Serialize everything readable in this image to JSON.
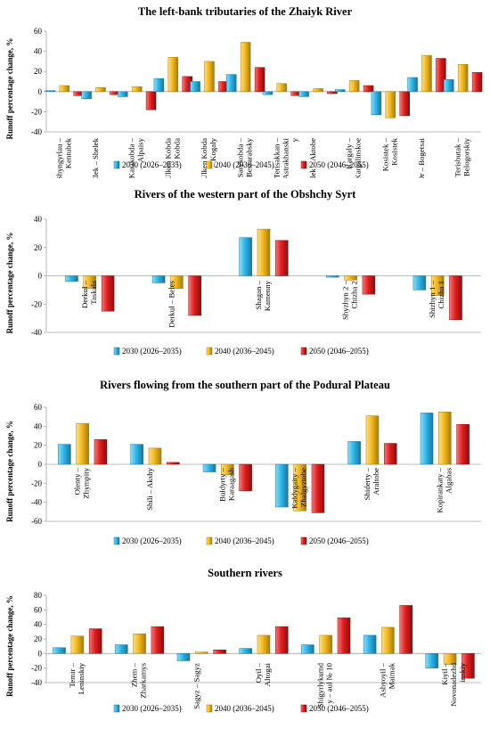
{
  "chart_data": [
    {
      "type": "bar",
      "title": "The left-bank tributaries of the Zhaiyk River",
      "ylabel": "Runoff percentage change, %",
      "ylim": [
        -40,
        60
      ],
      "yticks": [
        -40,
        -20,
        0,
        20,
        40,
        60
      ],
      "categories": [
        "Shyngyrlau –\nKentubek",
        "Elek – Shelek",
        "Karakobda –\nAlpaisy",
        "Ulken Kobda\n– Kobda",
        "Ulken Kobda\n– Kogaly",
        "Sarykobda –\nBessarabsky",
        "Terisakkan –\nAstrakhanski\ny",
        "Elek – Aktobe",
        "Kargaly –\nKargalinskoe",
        "Kosistek –\nKosistek",
        "Or – Bogetsai",
        "Terisbutak –\nBelogorskiy"
      ],
      "series": [
        {
          "name": "2030 (2026–2035)",
          "values": [
            1,
            -7,
            -5,
            13,
            10,
            17,
            -3,
            -5,
            2,
            -23,
            14,
            12
          ]
        },
        {
          "name": "2040 (2036–2045)",
          "values": [
            6,
            4,
            5,
            34,
            30,
            49,
            8,
            3,
            11,
            -26,
            36,
            27
          ]
        },
        {
          "name": "2050 (2046–2055)",
          "values": [
            -4,
            -3,
            -18,
            15,
            10,
            24,
            -4,
            -2,
            6,
            -24,
            33,
            19
          ]
        }
      ]
    },
    {
      "type": "bar",
      "title": "Rivers of the western part of the Obshchy Syrt",
      "ylabel": "Runoff percentage change, %",
      "ylim": [
        -40,
        40
      ],
      "yticks": [
        -40,
        -20,
        0,
        20,
        40
      ],
      "categories": [
        "Derkul –\nTaskala",
        "Derkul – Beles",
        "Shagan –\nKamenny",
        "Shyzhyn 2 –\nChizha 2",
        "Shizhyn 1 –\nChizha 1"
      ],
      "series": [
        {
          "name": "2030 (2026–2035)",
          "values": [
            -4,
            -5,
            27,
            -1,
            -10
          ]
        },
        {
          "name": "2040 (2036–2045)",
          "values": [
            -9,
            -9,
            33,
            -3,
            -14
          ]
        },
        {
          "name": "2050 (2046–2055)",
          "values": [
            -25,
            -28,
            25,
            -13,
            -31
          ]
        }
      ]
    },
    {
      "type": "bar",
      "title": "Rivers flowing from the southern part of the Podural Plateau",
      "ylabel": "Runoff percentage change, %",
      "ylim": [
        -60,
        60
      ],
      "yticks": [
        -60,
        -40,
        -20,
        0,
        20,
        40,
        60
      ],
      "categories": [
        "Olenty –\nZhympity",
        "Shili – Akshy",
        "Buldyrty –\nKaraagash",
        "Kaldygaity –\nZhalgyztobe",
        "Shiderty –\nAraltobe",
        "Kopirankaty –\nAlgabas"
      ],
      "series": [
        {
          "name": "2030 (2026–2035)",
          "values": [
            21,
            21,
            -8,
            -45,
            24,
            54
          ]
        },
        {
          "name": "2040 (2036–2045)",
          "values": [
            43,
            17,
            -11,
            -49,
            51,
            55
          ]
        },
        {
          "name": "2050 (2046–2055)",
          "values": [
            26,
            2,
            -28,
            -51,
            22,
            42
          ]
        }
      ]
    },
    {
      "type": "bar",
      "title": "Southern rivers",
      "ylabel": "Runoff percentage change, %",
      "ylim": [
        -40,
        80
      ],
      "yticks": [
        -40,
        -20,
        0,
        20,
        40,
        60,
        80
      ],
      "categories": [
        "Temir –\nLeninskiy",
        "Zhem –\nZharkamys",
        "Sagyz – Sagyz",
        "Oyil –\nAltogai",
        "Shigyrlykumd\ny – aul № 10",
        "Ashyoyil –\nMaimak",
        "Kiyil –\nNovonadezhd\ninskiy"
      ],
      "series": [
        {
          "name": "2030 (2026–2035)",
          "values": [
            8,
            12,
            -10,
            7,
            12,
            25,
            -20
          ]
        },
        {
          "name": "2040 (2036–2045)",
          "values": [
            24,
            27,
            2,
            25,
            25,
            36,
            -15
          ]
        },
        {
          "name": "2050 (2046–2055)",
          "values": [
            34,
            37,
            5,
            37,
            49,
            66,
            -34
          ]
        }
      ]
    }
  ],
  "colors": {
    "s2030": "#2eb4e6",
    "s2040": "#f2b81e",
    "s2050": "#e01f1f",
    "axis": "#a6a6a6"
  }
}
